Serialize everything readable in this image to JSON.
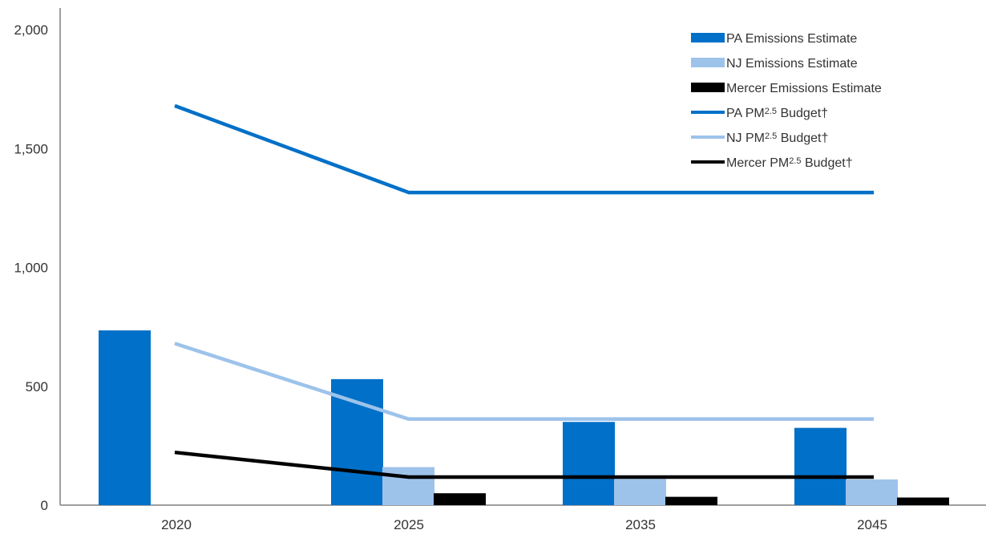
{
  "chart_data": {
    "type": "bar",
    "categories": [
      "2020",
      "2025",
      "2035",
      "2045"
    ],
    "ylim": [
      0,
      2000
    ],
    "yticks": [
      0,
      500,
      1000,
      1500,
      2000
    ],
    "ytick_labels": [
      "0",
      "500",
      "1,000",
      "1,500",
      "2,000"
    ],
    "grid": false,
    "legend_position": "top-right",
    "series": [
      {
        "name": "PA Emissions Estimate",
        "kind": "bar",
        "color": "#0070c8",
        "values": [
          735,
          530,
          350,
          325
        ]
      },
      {
        "name": "NJ Emissions Estimate",
        "kind": "bar",
        "color": "#9dc3ea",
        "values": [
          null,
          160,
          110,
          108
        ]
      },
      {
        "name": "Mercer Emissions Estimate",
        "kind": "bar",
        "color": "#000000",
        "values": [
          null,
          50,
          35,
          32
        ]
      },
      {
        "name_prefix": "PA PM",
        "name_sup": "2.5",
        "name_suffix": " Budget†",
        "kind": "line",
        "color": "#0070c8",
        "values": [
          1680,
          1315,
          1315,
          1315
        ]
      },
      {
        "name_prefix": "NJ PM",
        "name_sup": "2.5",
        "name_suffix": " Budget†",
        "kind": "line",
        "color": "#9dc3ea",
        "values": [
          680,
          362,
          362,
          362
        ]
      },
      {
        "name_prefix": "Mercer PM",
        "name_sup": "2.5",
        "name_suffix": " Budget†",
        "kind": "line",
        "color": "#000000",
        "values": [
          222,
          118,
          118,
          118
        ]
      }
    ]
  }
}
